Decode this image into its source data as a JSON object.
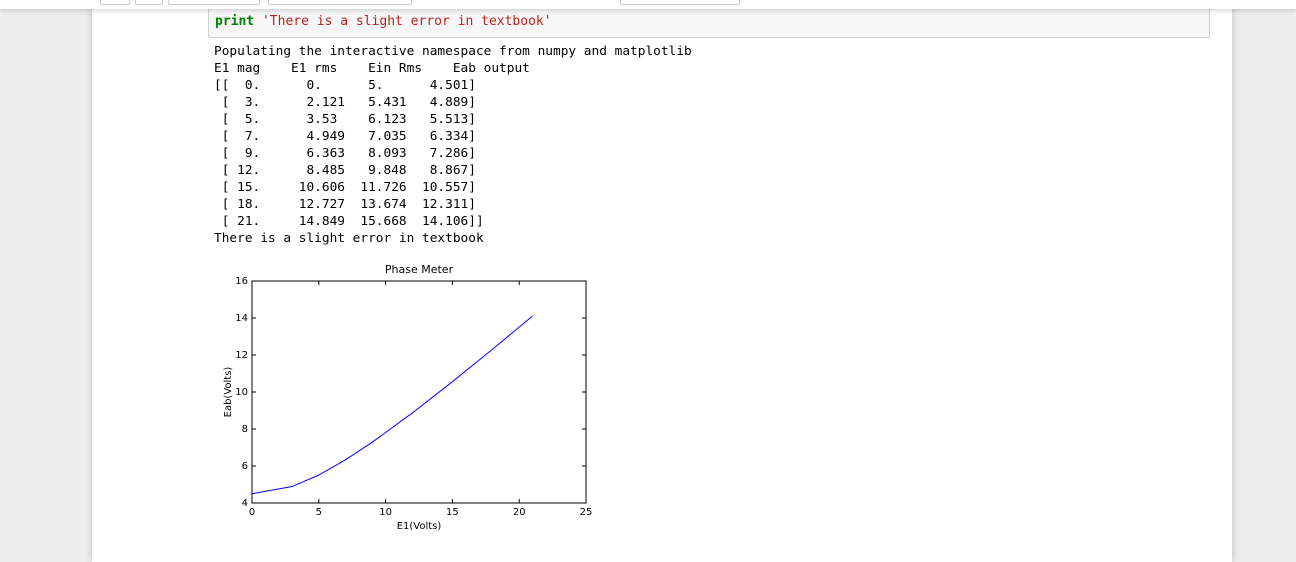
{
  "code": {
    "keyword": "print",
    "string": "'There is a slight error in textbook'"
  },
  "output": {
    "lines": [
      "Populating the interactive namespace from numpy and matplotlib",
      "E1 mag    E1 rms    Ein Rms    Eab output",
      "[[  0.      0.      5.      4.501]",
      " [  3.      2.121   5.431   4.889]",
      " [  5.      3.53    6.123   5.513]",
      " [  7.      4.949   7.035   6.334]",
      " [  9.      6.363   8.093   7.286]",
      " [ 12.      8.485   9.848   8.867]",
      " [ 15.     10.606  11.726  10.557]",
      " [ 18.     12.727  13.674  12.311]",
      " [ 21.     14.849  15.668  14.106]]",
      "There is a slight error in textbook"
    ]
  },
  "chart_data": {
    "type": "line",
    "title": "Phase Meter",
    "x_label": "E1(Volts)",
    "y_label": "Eab(Volts)",
    "x": [
      0,
      3,
      5,
      7,
      9,
      12,
      15,
      18,
      21
    ],
    "values": [
      4.501,
      4.889,
      5.513,
      6.334,
      7.286,
      8.867,
      10.557,
      12.311,
      14.106
    ],
    "color": "#0000ff",
    "xlim": [
      0,
      25
    ],
    "xticks": [
      0,
      5,
      10,
      15,
      20,
      25
    ],
    "ylim": [
      4,
      16
    ],
    "yticks": [
      4,
      6,
      8,
      10,
      12,
      14,
      16
    ],
    "grid": false
  }
}
